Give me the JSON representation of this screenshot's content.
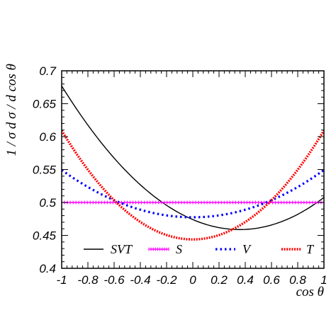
{
  "chart_data": {
    "type": "line",
    "xlabel": "cos θ",
    "ylabel": "1 / σ  d σ / d cos θ",
    "xlim": [
      -1,
      1
    ],
    "ylim": [
      0.4,
      0.7
    ],
    "xticks": [
      -1,
      -0.8,
      -0.6,
      -0.4,
      -0.2,
      0,
      0.2,
      0.4,
      0.6,
      0.8,
      1
    ],
    "xtick_labels": [
      "-1",
      "-0.8",
      "-0.6",
      "-0.4",
      "-0.2",
      "0",
      "0.2",
      "0.4",
      "0.6",
      "0.8",
      "1"
    ],
    "yticks": [
      0.4,
      0.45,
      0.5,
      0.55,
      0.6,
      0.65,
      0.7
    ],
    "ytick_labels": [
      "0.4",
      "0.45",
      "0.5",
      "0.55",
      "0.6",
      "0.65",
      "0.7"
    ],
    "grid": false,
    "legend_position": "bottom",
    "series": [
      {
        "name": "SVT",
        "color": "#000000",
        "style": "solid",
        "x": [
          -1,
          -0.8,
          -0.6,
          -0.4,
          -0.2,
          0,
          0.2,
          0.4,
          0.6,
          0.8,
          1
        ],
        "y": [
          0.677,
          0.6175,
          0.5674,
          0.5268,
          0.4957,
          0.474,
          0.4618,
          0.4591,
          0.4658,
          0.482,
          0.5077
        ]
      },
      {
        "name": "S",
        "color": "#ff00ff",
        "style": "dashed-marker",
        "x": [
          -1,
          1
        ],
        "y": [
          0.5,
          0.5
        ]
      },
      {
        "name": "V",
        "color": "#0000ff",
        "style": "dotted",
        "x": [
          -1,
          -0.8,
          -0.6,
          -0.4,
          -0.2,
          0,
          0.2,
          0.4,
          0.6,
          0.8,
          1
        ],
        "y": [
          0.55,
          0.5228,
          0.5026,
          0.4892,
          0.4823,
          0.475,
          0.4823,
          0.4892,
          0.5026,
          0.5228,
          0.55
        ]
      },
      {
        "name": "T",
        "color": "#ff0000",
        "style": "dotted-marker",
        "x": [
          -1,
          -0.8,
          -0.6,
          -0.4,
          -0.2,
          0,
          0.2,
          0.4,
          0.6,
          0.8,
          1
        ],
        "y": [
          0.61,
          0.5492,
          0.5016,
          0.4725,
          0.4503,
          0.4435,
          0.4503,
          0.4725,
          0.5016,
          0.5492,
          0.61
        ]
      }
    ]
  }
}
